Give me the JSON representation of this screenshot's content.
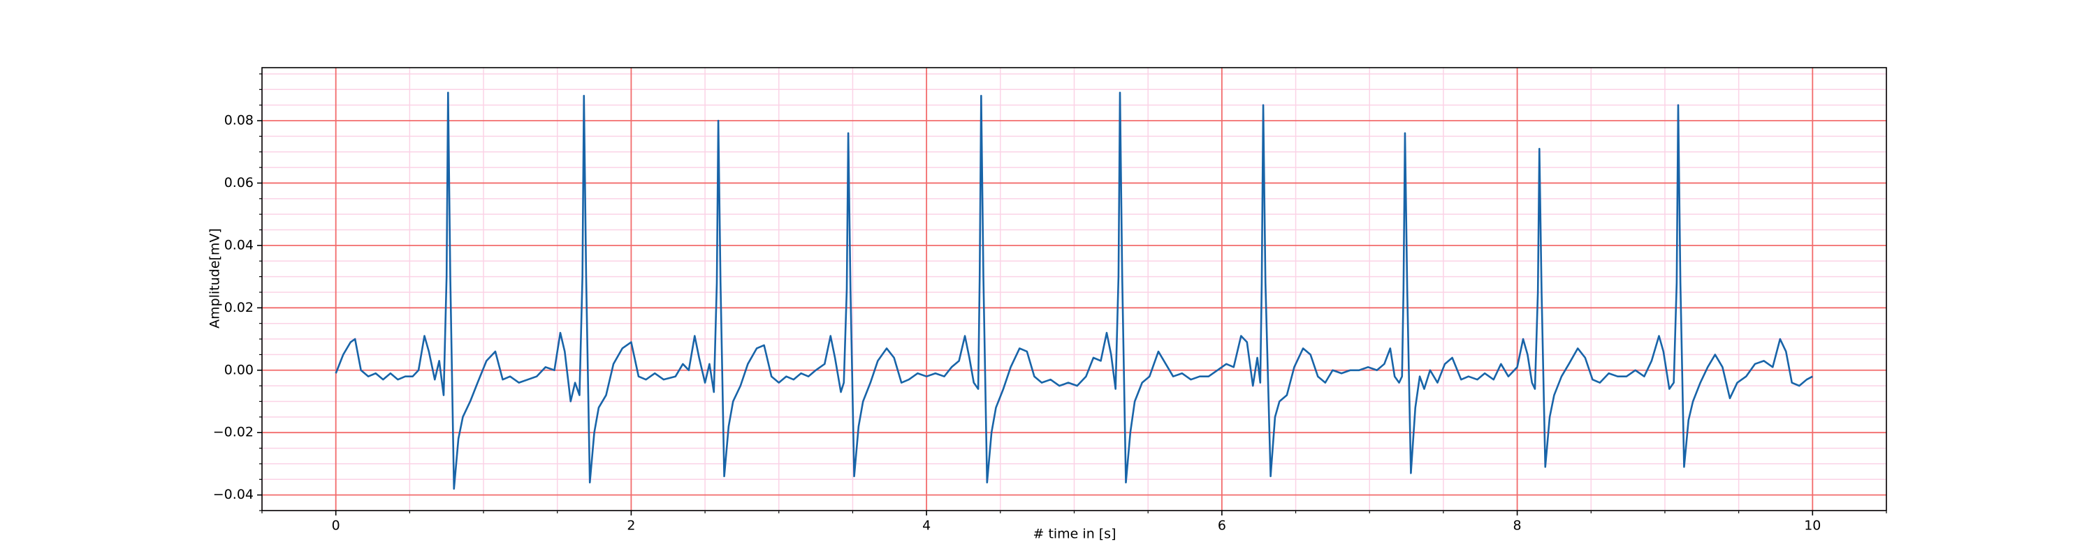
{
  "chart_data": {
    "type": "line",
    "xlabel": "# time in [s]",
    "ylabel": "Amplitude[mV]",
    "xlim": [
      -0.5,
      10.5
    ],
    "ylim": [
      -0.045,
      0.097
    ],
    "xticks": [
      0,
      2,
      4,
      6,
      8,
      10
    ],
    "yticks": [
      {
        "value": -0.04,
        "label": "−0.04"
      },
      {
        "value": -0.02,
        "label": "−0.02"
      },
      {
        "value": 0,
        "label": "0.00"
      },
      0.02,
      0.04,
      0.06,
      0.08
    ],
    "xminorticks": [
      -0.5,
      0.5,
      1,
      1.5,
      2.5,
      3,
      3.5,
      4.5,
      5,
      5.5,
      6.5,
      7,
      7.5,
      8.5,
      9,
      9.5,
      10.5
    ],
    "yminorticks": [
      -0.045,
      -0.035,
      -0.03,
      -0.025,
      -0.015,
      -0.01,
      -0.005,
      0.005,
      0.01,
      0.015,
      0.025,
      0.03,
      0.035,
      0.045,
      0.05,
      0.055,
      0.065,
      0.07,
      0.075,
      0.085,
      0.09,
      0.095
    ],
    "grid": true,
    "major_grid_color": "#f26b6b",
    "minor_grid_color": "#fbd3e6",
    "x": [
      0,
      0.05,
      0.1,
      0.13,
      0.17,
      0.22,
      0.27,
      0.32,
      0.37,
      0.42,
      0.47,
      0.52,
      0.56,
      0.6,
      0.63,
      0.67,
      0.7,
      0.73,
      0.75,
      0.76,
      0.775,
      0.8,
      0.83,
      0.86,
      0.91,
      0.96,
      1.02,
      1.08,
      1.13,
      1.18,
      1.24,
      1.3,
      1.36,
      1.42,
      1.48,
      1.52,
      1.55,
      1.59,
      1.62,
      1.65,
      1.67,
      1.68,
      1.695,
      1.72,
      1.75,
      1.78,
      1.83,
      1.88,
      1.94,
      2,
      2.05,
      2.1,
      2.16,
      2.22,
      2.3,
      2.35,
      2.39,
      2.43,
      2.46,
      2.5,
      2.53,
      2.56,
      2.58,
      2.59,
      2.605,
      2.63,
      2.66,
      2.69,
      2.74,
      2.79,
      2.85,
      2.9,
      2.95,
      3,
      3.05,
      3.1,
      3.15,
      3.2,
      3.25,
      3.31,
      3.35,
      3.38,
      3.42,
      3.44,
      3.46,
      3.47,
      3.485,
      3.51,
      3.54,
      3.57,
      3.62,
      3.67,
      3.73,
      3.78,
      3.83,
      3.88,
      3.94,
      4,
      4.06,
      4.12,
      4.17,
      4.22,
      4.26,
      4.29,
      4.32,
      4.35,
      4.36,
      4.37,
      4.385,
      4.41,
      4.44,
      4.47,
      4.52,
      4.57,
      4.63,
      4.68,
      4.73,
      4.78,
      4.84,
      4.9,
      4.96,
      5.02,
      5.08,
      5.13,
      5.18,
      5.22,
      5.25,
      5.28,
      5.3,
      5.31,
      5.325,
      5.35,
      5.38,
      5.41,
      5.46,
      5.51,
      5.57,
      5.62,
      5.67,
      5.73,
      5.79,
      5.85,
      5.91,
      5.97,
      6.03,
      6.08,
      6.13,
      6.17,
      6.21,
      6.24,
      6.26,
      6.27,
      6.28,
      6.295,
      6.33,
      6.36,
      6.39,
      6.44,
      6.49,
      6.55,
      6.6,
      6.65,
      6.7,
      6.75,
      6.81,
      6.87,
      6.93,
      6.99,
      7.05,
      7.1,
      7.14,
      7.17,
      7.2,
      7.22,
      7.23,
      7.24,
      7.255,
      7.28,
      7.31,
      7.34,
      7.37,
      7.41,
      7.46,
      7.51,
      7.56,
      7.62,
      7.67,
      7.73,
      7.78,
      7.84,
      7.89,
      7.94,
      8,
      8.04,
      8.07,
      8.1,
      8.12,
      8.14,
      8.15,
      8.165,
      8.19,
      8.22,
      8.25,
      8.3,
      8.35,
      8.41,
      8.46,
      8.51,
      8.56,
      8.62,
      8.68,
      8.74,
      8.8,
      8.86,
      8.91,
      8.96,
      8.99,
      9.03,
      9.06,
      9.08,
      9.09,
      9.105,
      9.13,
      9.16,
      9.19,
      9.24,
      9.29,
      9.34,
      9.39,
      9.44,
      9.49,
      9.55,
      9.61,
      9.67,
      9.73,
      9.78,
      9.82,
      9.86,
      9.91,
      9.96,
      10
    ],
    "series": [
      {
        "color": "#1864a8",
        "values": [
          -0.001,
          0.005,
          0.009,
          0.01,
          0,
          -0.002,
          -0.001,
          -0.003,
          -0.001,
          -0.003,
          -0.002,
          -0.002,
          0,
          0.011,
          0.006,
          -0.003,
          0.003,
          -0.008,
          0.03,
          0.089,
          0.03,
          -0.038,
          -0.022,
          -0.015,
          -0.01,
          -0.004,
          0.003,
          0.006,
          -0.003,
          -0.002,
          -0.004,
          -0.003,
          -0.002,
          0.001,
          0,
          0.012,
          0.006,
          -0.01,
          -0.004,
          -0.008,
          0.03,
          0.088,
          0.03,
          -0.036,
          -0.02,
          -0.012,
          -0.008,
          0.002,
          0.007,
          0.009,
          -0.002,
          -0.003,
          -0.001,
          -0.003,
          -0.002,
          0.002,
          0,
          0.011,
          0.004,
          -0.004,
          0.002,
          -0.007,
          0.028,
          0.08,
          0.028,
          -0.034,
          -0.018,
          -0.01,
          -0.005,
          0.002,
          0.007,
          0.008,
          -0.002,
          -0.004,
          -0.002,
          -0.003,
          -0.001,
          -0.002,
          0,
          0.002,
          0.011,
          0.004,
          -0.007,
          -0.004,
          0.026,
          0.076,
          0.026,
          -0.034,
          -0.018,
          -0.01,
          -0.004,
          0.003,
          0.007,
          0.004,
          -0.004,
          -0.003,
          -0.001,
          -0.002,
          -0.001,
          -0.002,
          0.001,
          0.003,
          0.011,
          0.004,
          -0.004,
          -0.006,
          0.03,
          0.088,
          0.03,
          -0.036,
          -0.02,
          -0.012,
          -0.006,
          0.001,
          0.007,
          0.006,
          -0.002,
          -0.004,
          -0.003,
          -0.005,
          -0.004,
          -0.005,
          -0.002,
          0.004,
          0.003,
          0.012,
          0.005,
          -0.006,
          0.03,
          0.089,
          0.03,
          -0.036,
          -0.02,
          -0.01,
          -0.004,
          -0.002,
          0.006,
          0.002,
          -0.002,
          -0.001,
          -0.003,
          -0.002,
          -0.002,
          0,
          0.002,
          0.001,
          0.011,
          0.009,
          -0.005,
          0.004,
          -0.004,
          0.028,
          0.085,
          0.028,
          -0.034,
          -0.015,
          -0.01,
          -0.008,
          0.001,
          0.007,
          0.005,
          -0.002,
          -0.004,
          0,
          -0.001,
          0,
          0,
          0.001,
          0,
          0.002,
          0.007,
          -0.002,
          -0.004,
          -0.002,
          0.026,
          0.076,
          0.026,
          -0.033,
          -0.012,
          -0.002,
          -0.006,
          0,
          -0.004,
          0.002,
          0.004,
          -0.003,
          -0.002,
          -0.003,
          -0.001,
          -0.003,
          0.002,
          -0.002,
          0.001,
          0.01,
          0.005,
          -0.004,
          -0.006,
          0.025,
          0.071,
          0.025,
          -0.031,
          -0.015,
          -0.008,
          -0.002,
          0.002,
          0.007,
          0.004,
          -0.003,
          -0.004,
          -0.001,
          -0.002,
          -0.002,
          0,
          -0.002,
          0.003,
          0.011,
          0.006,
          -0.006,
          -0.004,
          0.028,
          0.085,
          0.028,
          -0.031,
          -0.016,
          -0.01,
          -0.004,
          0.001,
          0.005,
          0.001,
          -0.009,
          -0.004,
          -0.002,
          0.002,
          0.003,
          0.001,
          0.01,
          0.006,
          -0.004,
          -0.005,
          -0.003,
          -0.002
        ]
      }
    ]
  }
}
